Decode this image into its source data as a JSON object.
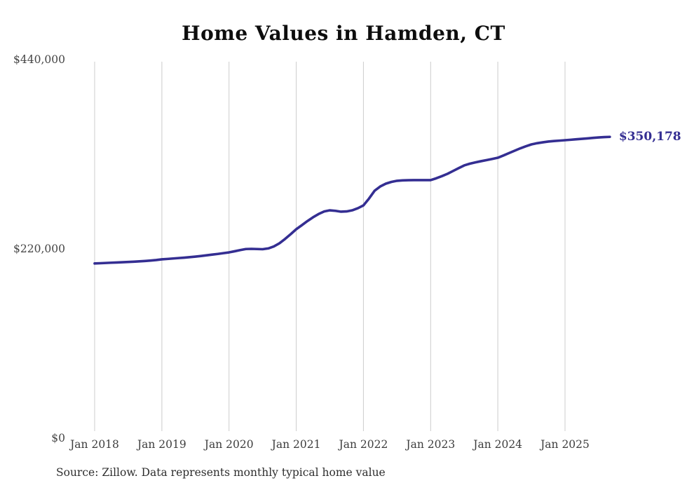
{
  "title": "Home Values in Hamden, CT",
  "source_note": "Source: Zillow. Data represents monthly typical home value",
  "colors": {
    "line": "#342e92",
    "end_label": "#342e92",
    "grid": "#cccccc",
    "axis_text": "#3d3d3d",
    "title_text": "#0d0d0d"
  },
  "chart_data": {
    "type": "line",
    "title": "Home Values in Hamden, CT",
    "xlabel": "",
    "ylabel": "",
    "ylim": [
      0,
      440000
    ],
    "y_tick_labels": [
      "$440,000",
      "$220,000",
      "$0"
    ],
    "x_tick_labels": [
      "Jan 2018",
      "Jan 2019",
      "Jan 2020",
      "Jan 2021",
      "Jan 2022",
      "Jan 2023",
      "Jan 2024",
      "Jan 2025"
    ],
    "grid": "vertical-only",
    "legend": "none",
    "end_value_label": "$350,178",
    "series": [
      {
        "name": "Typical home value",
        "start_month": "2018-01",
        "months_per_point": 1,
        "values": [
          203000,
          203300,
          203600,
          203900,
          204200,
          204500,
          204800,
          205100,
          205500,
          205900,
          206400,
          207000,
          207800,
          208300,
          208800,
          209300,
          209800,
          210400,
          211000,
          211700,
          212500,
          213300,
          214100,
          215000,
          215900,
          217200,
          218600,
          219800,
          220000,
          219800,
          219600,
          220500,
          222800,
          226500,
          231500,
          237000,
          242800,
          247500,
          252300,
          256700,
          260500,
          263500,
          264800,
          264200,
          263200,
          263500,
          264800,
          267200,
          270500,
          278500,
          287600,
          292500,
          295800,
          297800,
          299100,
          299600,
          299800,
          299900,
          299900,
          299900,
          299900,
          302000,
          304500,
          307200,
          310500,
          313800,
          317000,
          319000,
          320500,
          321900,
          323200,
          324500,
          325900,
          328500,
          331300,
          334100,
          336800,
          339200,
          341400,
          342800,
          343800,
          344700,
          345300,
          345800,
          346300,
          346800,
          347400,
          347900,
          348400,
          349000,
          349500,
          349900,
          350178
        ]
      }
    ]
  }
}
